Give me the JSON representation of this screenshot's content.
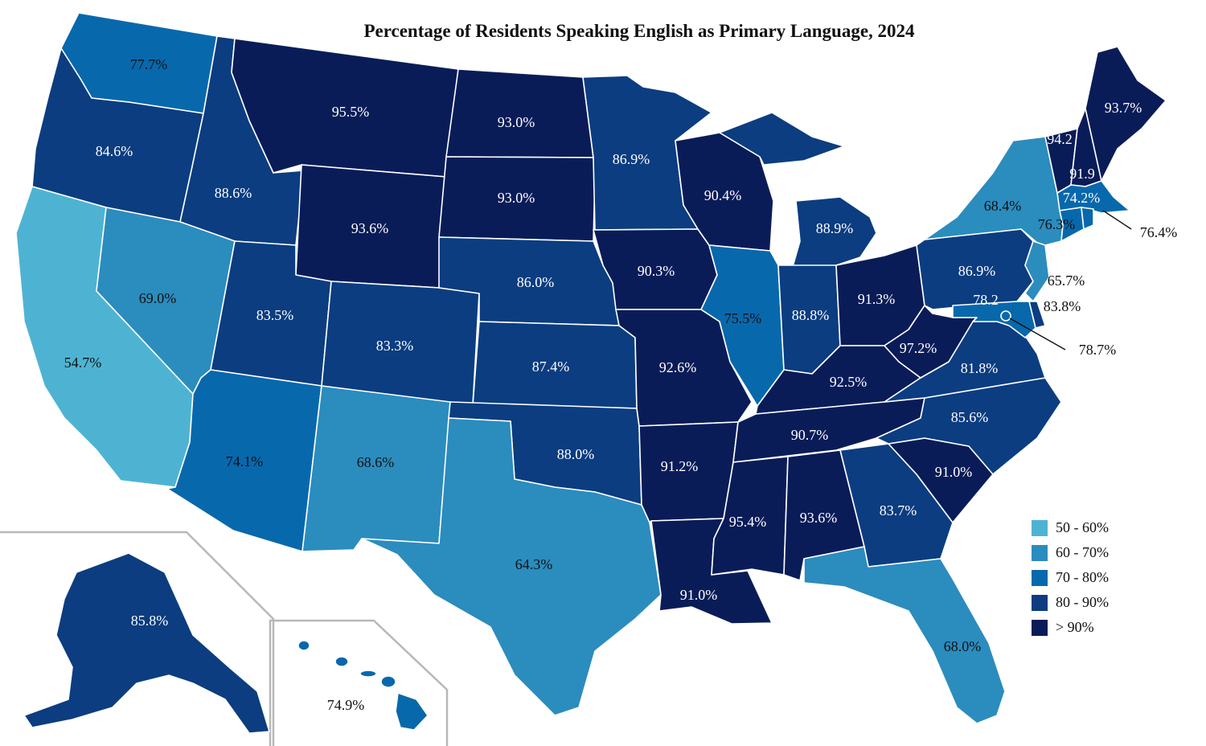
{
  "title": "Percentage of Residents Speaking English as Primary Language, 2024",
  "colors": {
    "c50_60": "#4eb3d3",
    "c60_70": "#2b8cbe",
    "c70_80": "#0868ac",
    "c80_90": "#0b3d80",
    "c90_plus": "#0a1c58"
  },
  "legend": [
    {
      "label": "50 - 60%",
      "color": "#4eb3d3"
    },
    {
      "label": "60 - 70%",
      "color": "#2b8cbe"
    },
    {
      "label": "70 - 80%",
      "color": "#0868ac"
    },
    {
      "label": "80 - 90%",
      "color": "#0b3d80"
    },
    {
      "label": "> 90%",
      "color": "#0a1c58"
    }
  ],
  "states": {
    "WA": {
      "value": "77.7%"
    },
    "OR": {
      "value": "84.6%"
    },
    "CA": {
      "value": "54.7%"
    },
    "ID": {
      "value": "88.6%"
    },
    "NV": {
      "value": "69.0%"
    },
    "MT": {
      "value": "95.5%"
    },
    "WY": {
      "value": "93.6%"
    },
    "UT": {
      "value": "83.5%"
    },
    "AZ": {
      "value": "74.1%"
    },
    "CO": {
      "value": "83.3%"
    },
    "NM": {
      "value": "68.6%"
    },
    "ND": {
      "value": "93.0%"
    },
    "SD": {
      "value": "93.0%"
    },
    "NE": {
      "value": "86.0%"
    },
    "KS": {
      "value": "87.4%"
    },
    "OK": {
      "value": "88.0%"
    },
    "TX": {
      "value": "64.3%"
    },
    "MN": {
      "value": "86.9%"
    },
    "IA": {
      "value": "90.3%"
    },
    "MO": {
      "value": "92.6%"
    },
    "AR": {
      "value": "91.2%"
    },
    "LA": {
      "value": "91.0%"
    },
    "WI": {
      "value": "90.4%"
    },
    "IL": {
      "value": "75.5%"
    },
    "MI": {
      "value": "88.9%"
    },
    "IN": {
      "value": "88.8%"
    },
    "OH": {
      "value": "91.3%"
    },
    "KY": {
      "value": "92.5%"
    },
    "TN": {
      "value": "90.7%"
    },
    "MS": {
      "value": "95.4%"
    },
    "AL": {
      "value": "93.6%"
    },
    "GA": {
      "value": "83.7%"
    },
    "FL": {
      "value": "68.0%"
    },
    "SC": {
      "value": "91.0%"
    },
    "NC": {
      "value": "85.6%"
    },
    "VA": {
      "value": "81.8%"
    },
    "WV": {
      "value": "97.2%"
    },
    "PA": {
      "value": "86.9%"
    },
    "NY": {
      "value": "68.4%"
    },
    "VT": {
      "value": "94.2"
    },
    "NH": {
      "value": "91.9"
    },
    "ME": {
      "value": "93.7%"
    },
    "MA": {
      "value": "74.2%"
    },
    "CT": {
      "value": "76.3%"
    },
    "RI": {
      "value": "76.4%"
    },
    "NJ": {
      "value": "65.7%"
    },
    "DE": {
      "value": "83.8%"
    },
    "MD": {
      "value": "78.2"
    },
    "DC": {
      "value": "78.7%"
    },
    "AK": {
      "value": "85.8%"
    },
    "HI": {
      "value": "74.9%"
    }
  }
}
